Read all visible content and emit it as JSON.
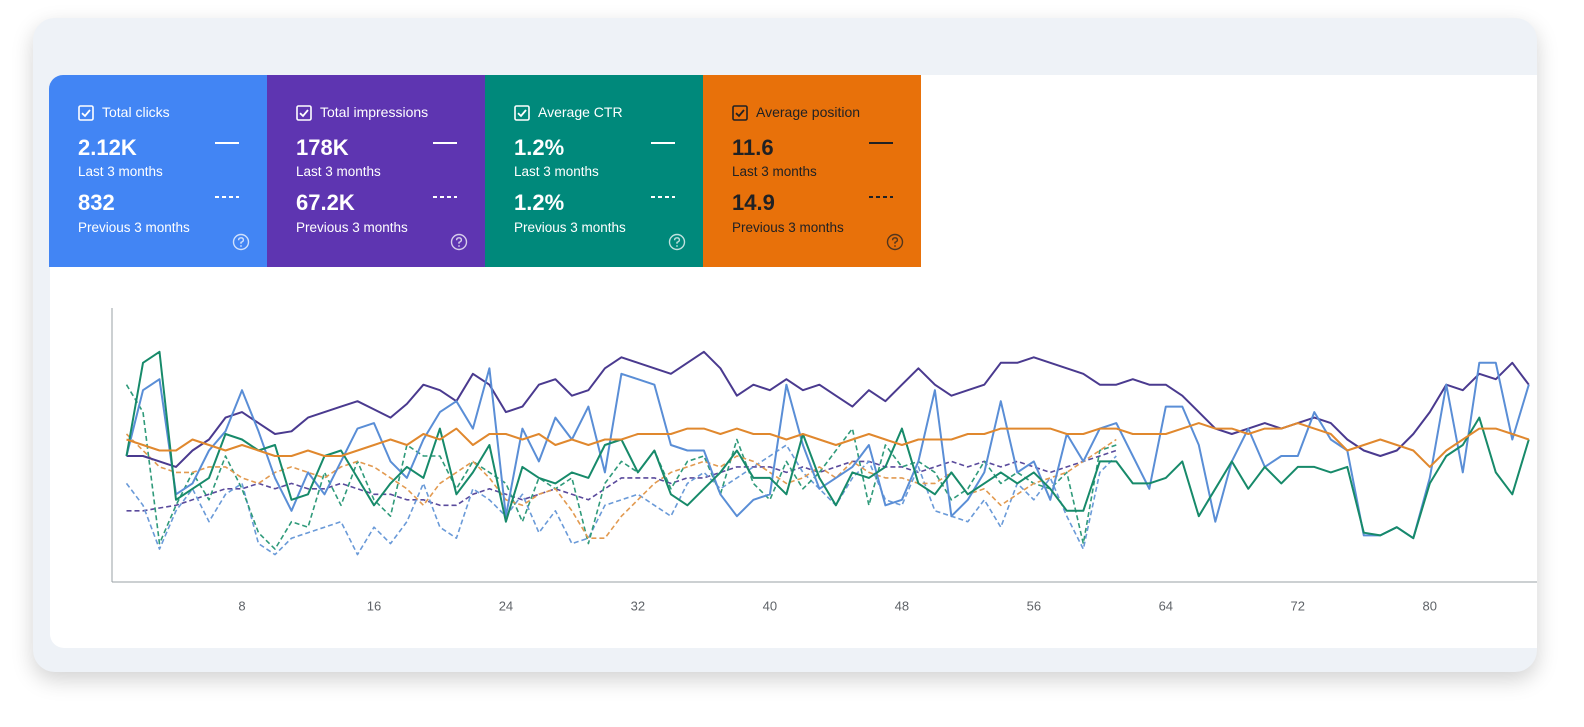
{
  "cards": [
    {
      "label": "Total clicks",
      "current": "2.12K",
      "current_period": "Last 3 months",
      "previous": "832",
      "previous_period": "Previous 3 months",
      "color": "#4285f4"
    },
    {
      "label": "Total impressions",
      "current": "178K",
      "current_period": "Last 3 months",
      "previous": "67.2K",
      "previous_period": "Previous 3 months",
      "color": "#5e35b1"
    },
    {
      "label": "Average CTR",
      "current": "1.2%",
      "current_period": "Last 3 months",
      "previous": "1.2%",
      "previous_period": "Previous 3 months",
      "color": "#00897b"
    },
    {
      "label": "Average position",
      "current": "11.6",
      "current_period": "Last 3 months",
      "previous": "14.9",
      "previous_period": "Previous 3 months",
      "color": "#e8710a"
    }
  ],
  "chart_data": {
    "type": "line",
    "x": [
      1,
      2,
      3,
      4,
      5,
      6,
      7,
      8,
      9,
      10,
      11,
      12,
      13,
      14,
      15,
      16,
      17,
      18,
      19,
      20,
      21,
      22,
      23,
      24,
      25,
      26,
      27,
      28,
      29,
      30,
      31,
      32,
      33,
      34,
      35,
      36,
      37,
      38,
      39,
      40,
      41,
      42,
      43,
      44,
      45,
      46,
      47,
      48,
      49,
      50,
      51,
      52,
      53,
      54,
      55,
      56,
      57,
      58,
      59,
      60,
      61,
      62,
      63,
      64,
      65,
      66,
      67,
      68,
      69,
      70,
      71,
      72,
      73,
      74,
      75,
      76,
      77,
      78,
      79,
      80,
      81,
      82,
      83,
      84,
      85,
      86
    ],
    "xlim": [
      0,
      86.5
    ],
    "xticks": [
      8,
      16,
      24,
      32,
      40,
      48,
      56,
      64,
      72,
      80
    ],
    "ylim": [
      0,
      100
    ],
    "grid": false,
    "series": [
      {
        "color": "#4a3a8f",
        "dashed": false,
        "values": [
          46,
          46,
          44,
          42,
          48,
          52,
          60,
          62,
          58,
          54,
          55,
          60,
          62,
          64,
          66,
          63,
          60,
          65,
          72,
          70,
          66,
          76,
          72,
          62,
          64,
          72,
          74,
          68,
          70,
          78,
          82,
          80,
          78,
          76,
          80,
          84,
          78,
          68,
          72,
          70,
          74,
          70,
          72,
          68,
          64,
          70,
          66,
          72,
          78,
          72,
          68,
          70,
          72,
          80,
          80,
          82,
          80,
          78,
          76,
          72,
          72,
          74,
          72,
          72,
          68,
          62,
          56,
          54,
          56,
          58,
          56,
          58,
          60,
          58,
          52,
          48,
          46,
          48,
          54,
          62,
          72,
          70,
          76,
          74,
          80,
          72
        ]
      },
      {
        "color": "#5a8ed6",
        "dashed": false,
        "values": [
          46,
          70,
          74,
          32,
          36,
          48,
          55,
          70,
          55,
          38,
          26,
          40,
          32,
          44,
          56,
          58,
          44,
          38,
          52,
          62,
          66,
          56,
          78,
          24,
          56,
          44,
          60,
          52,
          64,
          40,
          76,
          74,
          72,
          50,
          48,
          48,
          32,
          24,
          30,
          32,
          72,
          50,
          34,
          38,
          42,
          50,
          28,
          30,
          44,
          70,
          24,
          30,
          40,
          66,
          40,
          44,
          30,
          54,
          44,
          56,
          58,
          46,
          34,
          64,
          64,
          50,
          22,
          44,
          56,
          42,
          46,
          46,
          62,
          52,
          48,
          17,
          17,
          20,
          16,
          38,
          72,
          40,
          80,
          80,
          52,
          72
        ]
      },
      {
        "color": "#178a6a",
        "dashed": false,
        "values": [
          46,
          80,
          84,
          30,
          34,
          38,
          54,
          52,
          48,
          50,
          30,
          32,
          46,
          48,
          38,
          28,
          36,
          42,
          38,
          56,
          32,
          40,
          50,
          22,
          42,
          38,
          36,
          40,
          38,
          50,
          52,
          40,
          48,
          32,
          28,
          34,
          40,
          48,
          38,
          38,
          32,
          54,
          38,
          28,
          40,
          38,
          42,
          56,
          36,
          32,
          40,
          32,
          36,
          40,
          36,
          40,
          34,
          26,
          26,
          44,
          44,
          36,
          36,
          38,
          44,
          24,
          34,
          44,
          34,
          42,
          36,
          42,
          42,
          40,
          42,
          18,
          17,
          20,
          16,
          36,
          46,
          50,
          60,
          40,
          32,
          52
        ]
      },
      {
        "color": "#e0882e",
        "dashed": false,
        "values": [
          52,
          50,
          48,
          48,
          52,
          50,
          48,
          50,
          48,
          46,
          46,
          48,
          46,
          46,
          48,
          50,
          52,
          50,
          54,
          52,
          56,
          50,
          54,
          54,
          52,
          54,
          50,
          52,
          50,
          52,
          52,
          54,
          54,
          54,
          56,
          56,
          54,
          56,
          54,
          54,
          52,
          54,
          52,
          50,
          52,
          54,
          52,
          50,
          52,
          52,
          52,
          54,
          54,
          56,
          56,
          56,
          56,
          54,
          54,
          56,
          56,
          54,
          54,
          54,
          56,
          58,
          56,
          56,
          54,
          56,
          56,
          58,
          56,
          54,
          48,
          50,
          52,
          50,
          48,
          42,
          48,
          52,
          56,
          56,
          54,
          52
        ]
      },
      {
        "color": "#5a4a9c",
        "dashed": true,
        "values": [
          26,
          26,
          27,
          28,
          30,
          32,
          34,
          34,
          36,
          34,
          36,
          34,
          34,
          36,
          34,
          32,
          32,
          30,
          30,
          28,
          28,
          32,
          34,
          32,
          30,
          32,
          34,
          32,
          30,
          34,
          38,
          38,
          38,
          36,
          38,
          38,
          40,
          42,
          42,
          42,
          40,
          42,
          40,
          42,
          44,
          44,
          42,
          42,
          40,
          42,
          44,
          42,
          44,
          42,
          44,
          42,
          40,
          42,
          44,
          46,
          48,
          null,
          null,
          null,
          null,
          null,
          null,
          null,
          null,
          null,
          null,
          null,
          null,
          null,
          null,
          null,
          null,
          null,
          null,
          null,
          null,
          null,
          null,
          null,
          null,
          null
        ]
      },
      {
        "color": "#6a9ad8",
        "dashed": true,
        "values": [
          36,
          28,
          12,
          26,
          34,
          22,
          32,
          36,
          14,
          10,
          16,
          18,
          20,
          22,
          10,
          20,
          14,
          22,
          36,
          20,
          16,
          34,
          30,
          24,
          32,
          18,
          26,
          14,
          16,
          28,
          30,
          32,
          28,
          24,
          36,
          40,
          34,
          38,
          42,
          46,
          50,
          40,
          34,
          28,
          38,
          44,
          30,
          28,
          42,
          26,
          24,
          22,
          30,
          20,
          36,
          30,
          38,
          24,
          12,
          40,
          46,
          null,
          null,
          null,
          null,
          null,
          null,
          null,
          null,
          null,
          null,
          null,
          null,
          null,
          null,
          null,
          null,
          null,
          null,
          null,
          null,
          null,
          null,
          null,
          null,
          null
        ]
      },
      {
        "color": "#2f9a7a",
        "dashed": true,
        "values": [
          72,
          62,
          14,
          28,
          40,
          30,
          46,
          34,
          18,
          12,
          22,
          20,
          40,
          28,
          44,
          30,
          24,
          50,
          46,
          46,
          34,
          44,
          40,
          36,
          22,
          38,
          34,
          38,
          14,
          36,
          44,
          40,
          48,
          34,
          44,
          46,
          32,
          52,
          36,
          30,
          44,
          34,
          40,
          48,
          56,
          28,
          50,
          42,
          44,
          40,
          30,
          34,
          44,
          36,
          40,
          36,
          34,
          40,
          14,
          48,
          50,
          null,
          null,
          null,
          null,
          null,
          null,
          null,
          null,
          null,
          null,
          null,
          null,
          null,
          null,
          null,
          null,
          null,
          null,
          null,
          null,
          null,
          null,
          null,
          null,
          null
        ]
      },
      {
        "color": "#e29a50",
        "dashed": true,
        "values": [
          54,
          48,
          42,
          40,
          40,
          42,
          42,
          38,
          36,
          40,
          42,
          40,
          38,
          42,
          44,
          42,
          38,
          34,
          28,
          36,
          40,
          44,
          38,
          30,
          28,
          32,
          34,
          26,
          16,
          16,
          24,
          30,
          36,
          40,
          42,
          44,
          42,
          46,
          44,
          40,
          36,
          38,
          42,
          38,
          44,
          40,
          38,
          38,
          36,
          36,
          40,
          32,
          34,
          28,
          32,
          36,
          38,
          40,
          44,
          48,
          52,
          null,
          null,
          null,
          null,
          null,
          null,
          null,
          null,
          null,
          null,
          null,
          null,
          null,
          null,
          null,
          null,
          null,
          null,
          null,
          null,
          null,
          null,
          null,
          null,
          null
        ]
      }
    ]
  }
}
